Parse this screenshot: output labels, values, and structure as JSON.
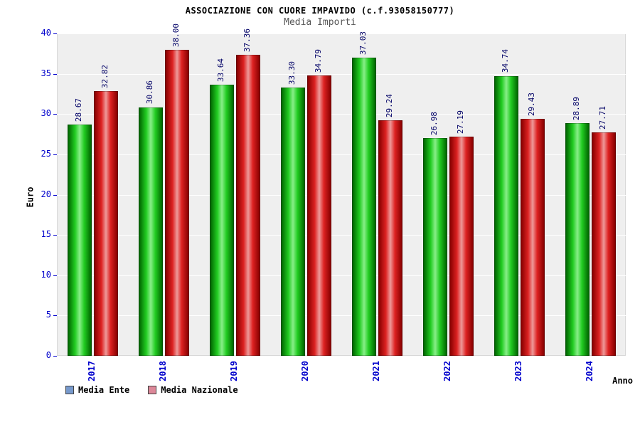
{
  "title": "ASSOCIAZIONE CON CUORE IMPAVIDO (c.f.93058150777)",
  "subtitle": "Media Importi",
  "chart_data": {
    "type": "bar",
    "categories": [
      "2017",
      "2018",
      "2019",
      "2020",
      "2021",
      "2022",
      "2023",
      "2024"
    ],
    "series": [
      {
        "name": "Media Ente",
        "bar_color_edge": "#006600",
        "bar_color_mid": "#22cc22",
        "bar_color_highlight": "#88ee88",
        "legend_color": "#7799cc",
        "values": [
          28.67,
          30.86,
          33.64,
          33.3,
          37.03,
          26.98,
          34.74,
          28.89
        ]
      },
      {
        "name": "Media Nazionale",
        "bar_color_edge": "#880000",
        "bar_color_mid": "#dd2222",
        "bar_color_highlight": "#ee9999",
        "legend_color": "#dd8899",
        "values": [
          32.82,
          38.0,
          37.36,
          34.79,
          29.24,
          27.19,
          29.43,
          27.71
        ]
      }
    ],
    "value_labels": [
      [
        "28.67",
        "30.86",
        "33.64",
        "33.30",
        "37.03",
        "26.98",
        "34.74",
        "28.89"
      ],
      [
        "32.82",
        "38.00",
        "37.36",
        "34.79",
        "29.24",
        "27.19",
        "29.43",
        "27.71"
      ]
    ],
    "xlabel": "Anno",
    "ylabel": "Euro",
    "ylim": [
      0,
      40
    ],
    "ytick_step": 5,
    "grid": true,
    "legend_position": "bottom"
  },
  "colors": {
    "tick_label": "#0000cc",
    "value_label": "#000066",
    "plot_background": "#efefef",
    "gridline": "#ffffff"
  }
}
